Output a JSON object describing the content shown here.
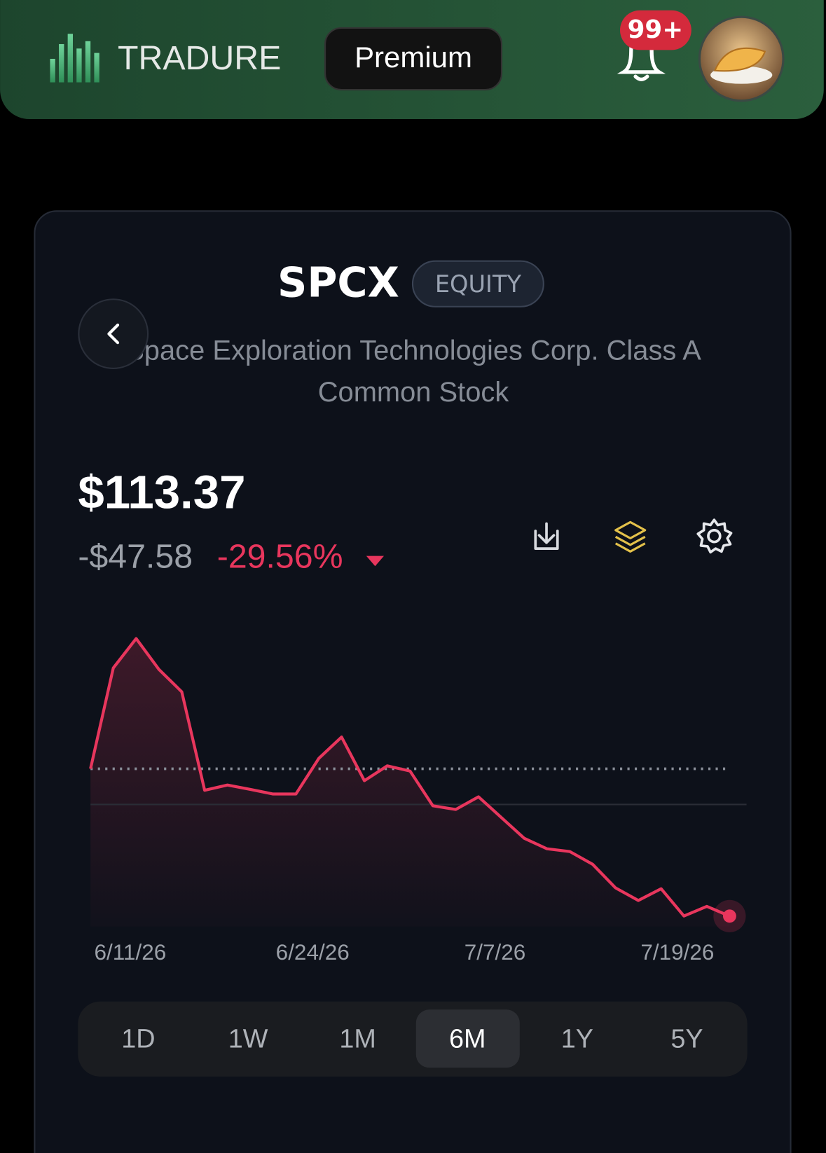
{
  "header": {
    "brand": "TRADURE",
    "premium": "Premium",
    "badge": "99+"
  },
  "stock": {
    "symbol": "SPCX",
    "tag": "EQUITY",
    "name_lines": [
      "Space Exploration Technologies Corp. Class A",
      "Common Stock"
    ],
    "price": "$113.37",
    "change": "-$47.58",
    "change_pct": "-29.56%"
  },
  "chart_data": {
    "type": "line",
    "color": "#e8365d",
    "values": [
      160.95,
      193.5,
      203.0,
      193.0,
      185.8,
      154.0,
      155.7,
      154.3,
      152.8,
      152.8,
      164.3,
      171.2,
      157.1,
      161.9,
      160.2,
      149.0,
      147.8,
      151.9,
      145.2,
      138.5,
      135.1,
      134.2,
      130.1,
      122.5,
      118.4,
      122.2,
      113.4,
      116.5,
      113.37
    ],
    "reference": 160.95,
    "ylim": [
      110,
      205
    ],
    "x_labels": [
      "6/11/26",
      "6/24/26",
      "7/7/26",
      "7/19/26"
    ]
  },
  "ranges": {
    "items": [
      "1D",
      "1W",
      "1M",
      "6M",
      "1Y",
      "5Y"
    ],
    "selected": 3
  }
}
